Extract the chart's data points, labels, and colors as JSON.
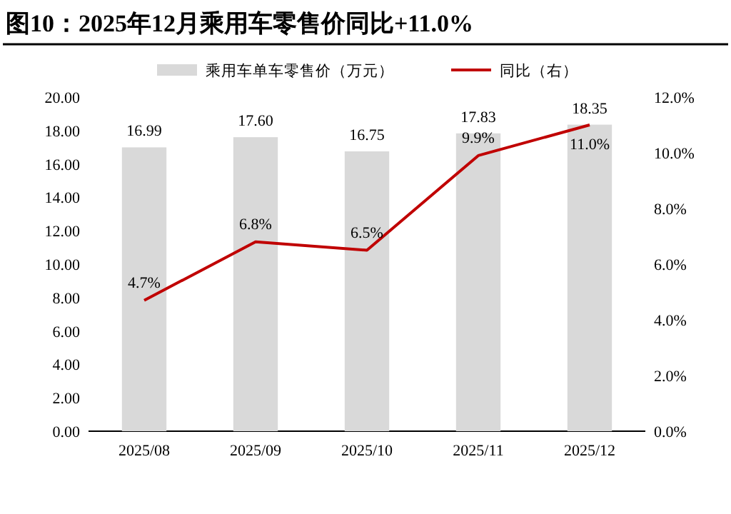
{
  "chart_data": {
    "type": "bar",
    "title": "图10：2025年12月乘用车零售价同比+11.0%",
    "categories": [
      "2025/08",
      "2025/09",
      "2025/10",
      "2025/11",
      "2025/12"
    ],
    "series": [
      {
        "name": "乘用车单车零售价（万元）",
        "color": "#d9d9d9",
        "values": [
          16.99,
          17.6,
          16.75,
          17.83,
          18.35
        ],
        "value_labels": [
          "16.99",
          "17.60",
          "16.75",
          "17.83",
          "18.35"
        ]
      },
      {
        "name": "同比（右）",
        "type": "line",
        "axis": "y2",
        "color": "#c00000",
        "values": [
          4.7,
          6.8,
          6.5,
          9.9,
          11.0
        ],
        "value_labels": [
          "4.7%",
          "6.8%",
          "6.5%",
          "9.9%",
          "11.0%"
        ]
      }
    ],
    "ylim": [
      0,
      20
    ],
    "yticks": [
      {
        "value": 0,
        "label": "0.00"
      },
      {
        "value": 2,
        "label": "2.00"
      },
      {
        "value": 4,
        "label": "4.00"
      },
      {
        "value": 6,
        "label": "6.00"
      },
      {
        "value": 8,
        "label": "8.00"
      },
      {
        "value": 10,
        "label": "10.00"
      },
      {
        "value": 12,
        "label": "12.00"
      },
      {
        "value": 14,
        "label": "14.00"
      },
      {
        "value": 16,
        "label": "16.00"
      },
      {
        "value": 18,
        "label": "18.00"
      },
      {
        "value": 20,
        "label": "20.00"
      }
    ],
    "y2lim": [
      0,
      12
    ],
    "y2ticks": [
      {
        "value": 0,
        "label": "0.0%"
      },
      {
        "value": 2,
        "label": "2.0%"
      },
      {
        "value": 4,
        "label": "4.0%"
      },
      {
        "value": 6,
        "label": "6.0%"
      },
      {
        "value": 8,
        "label": "8.0%"
      },
      {
        "value": 10,
        "label": "10.0%"
      },
      {
        "value": 12,
        "label": "12.0%"
      }
    ],
    "legend": "top"
  }
}
